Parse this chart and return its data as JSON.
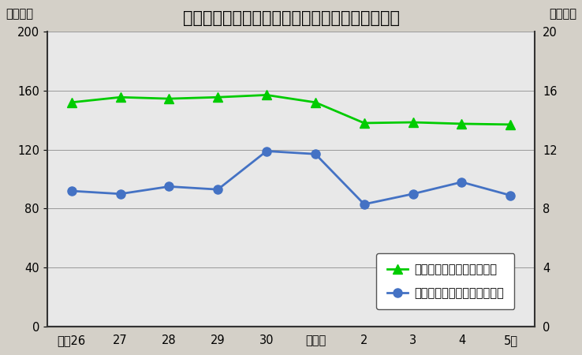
{
  "title": "総実労働時間と所定外労働時間の推移（鳥取県）",
  "ylabel_left": "（時間）",
  "ylabel_right": "（時間）",
  "x_labels": [
    "平成26",
    "27",
    "28",
    "29",
    "30",
    "令和元",
    "2",
    "3",
    "4",
    "5年"
  ],
  "green_values": [
    152.0,
    155.5,
    154.5,
    155.5,
    157.0,
    152.0,
    138.0,
    138.5,
    137.5,
    137.0
  ],
  "blue_values": [
    9.2,
    9.0,
    9.5,
    9.3,
    11.9,
    11.7,
    8.3,
    9.0,
    9.8,
    8.9
  ],
  "green_color": "#00cc00",
  "blue_color": "#4472c4",
  "left_ylim": [
    0,
    200
  ],
  "right_ylim": [
    0,
    20
  ],
  "left_yticks": [
    0,
    40,
    80,
    120,
    160,
    200
  ],
  "right_yticks": [
    0,
    4,
    8,
    12,
    16,
    20
  ],
  "fig_bg_color": "#d4d0c8",
  "plot_bg_color": "#e8e8e8",
  "grid_color": "#999999",
  "border_color": "#333333",
  "legend1": "総実労働時間（左目盛り）",
  "legend2": "所定外労働時間（右目盛り）",
  "title_fontsize": 15,
  "tick_fontsize": 10.5,
  "legend_fontsize": 10.5,
  "label_fontsize": 10.5,
  "linewidth": 2.0,
  "marker_size": 8
}
